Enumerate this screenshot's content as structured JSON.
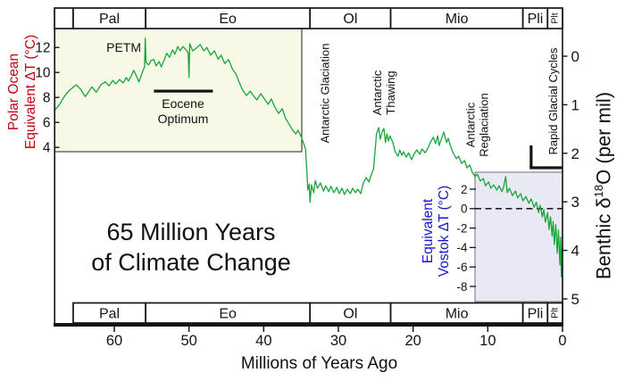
{
  "colors": {
    "curve": "#17A63A",
    "cream_panel": "#F8F8E7",
    "lavender_panel": "#E9E9F6",
    "red_label": "#C4000E",
    "blue_label": "#1717C9",
    "ink": "#141414"
  },
  "title": {
    "line1": "65 Million Years",
    "line2": "of Climate Change"
  },
  "x_axis": {
    "label": "Millions of Years Ago",
    "ticks": [
      60,
      50,
      40,
      30,
      20,
      10,
      0
    ]
  },
  "left_axis": {
    "label_line1": "Polar Ocean",
    "label_line2": "Equivalent ΔT (°C)",
    "ticks": [
      12,
      10,
      8,
      6,
      4
    ]
  },
  "right_axis": {
    "label_prefix": "Benthic δ",
    "label_sup": "18",
    "label_suffix": "O (per mil)",
    "ticks": [
      0,
      1,
      2,
      3,
      4,
      5
    ]
  },
  "vostok_axis": {
    "label_line1": "Equivalent",
    "label_line2": "Vostok ΔT (°C)",
    "ticks": [
      2,
      0,
      -2,
      -4,
      -6,
      -8
    ]
  },
  "epochs": {
    "top": [
      {
        "label": "",
        "start": 68,
        "end": 65.5
      },
      {
        "label": "Pal",
        "start": 65.5,
        "end": 55.8
      },
      {
        "label": "Eo",
        "start": 55.8,
        "end": 33.8
      },
      {
        "label": "Ol",
        "start": 33.8,
        "end": 23
      },
      {
        "label": "Mio",
        "start": 23,
        "end": 5.3
      },
      {
        "label": "Pli",
        "start": 5.3,
        "end": 2
      },
      {
        "label": "Plt",
        "start": 2,
        "end": 0,
        "rotated": true
      }
    ],
    "bottom": [
      {
        "label": "Pal",
        "start": 65.5,
        "end": 55.8
      },
      {
        "label": "Eo",
        "start": 55.8,
        "end": 33.8
      },
      {
        "label": "Ol",
        "start": 33.8,
        "end": 23
      },
      {
        "label": "Mio",
        "start": 23,
        "end": 5.3
      },
      {
        "label": "Pli",
        "start": 5.3,
        "end": 2
      },
      {
        "label": "Plt",
        "start": 2,
        "end": 0,
        "rotated": true
      }
    ]
  },
  "annotations": {
    "petm": "PETM",
    "eocene_optimum_line1": "Eocene",
    "eocene_optimum_line2": "Optimum",
    "antarctic_glaciation": "Antarctic Glaciation",
    "antarctic_thawing_line1": "Antarctic",
    "antarctic_thawing_line2": "Thawing",
    "antarctic_reglaciation_line1": "Antarctic",
    "antarctic_reglaciation_line2": "Reglaciation",
    "rapid_glacial_cycles": "Rapid Glacial Cycles"
  },
  "chart_data": {
    "type": "line",
    "title": "65 Million Years of Climate Change",
    "xlabel": "Millions of Years Ago",
    "xlim": [
      68,
      0
    ],
    "x_reversed": true,
    "ylabel_right": "Benthic δ18O (per mil)",
    "ylim_right": [
      0,
      5
    ],
    "y_right_inverted": true,
    "secondary_scales": [
      {
        "name": "Polar Ocean Equivalent ΔT (°C)",
        "ticks": [
          12,
          10,
          8,
          6,
          4
        ],
        "panel_age_range_ma": [
          68,
          34.9
        ]
      },
      {
        "name": "Equivalent Vostok ΔT (°C)",
        "ticks": [
          2,
          0,
          -2,
          -4,
          -6,
          -8
        ],
        "panel_age_range_ma": [
          11.7,
          0
        ],
        "dashed_reference_value": 0
      }
    ],
    "epoch_boundaries_ma": {
      "Pal": [
        65.5,
        55.8
      ],
      "Eo": [
        55.8,
        33.8
      ],
      "Ol": [
        33.8,
        23
      ],
      "Mio": [
        23,
        5.3
      ],
      "Pli": [
        5.3,
        2
      ],
      "Plt": [
        2,
        0
      ]
    },
    "events": [
      {
        "label": "PETM",
        "age_ma": 55.8
      },
      {
        "label": "Eocene Optimum",
        "age_range_ma": [
          54.7,
          46.8
        ]
      },
      {
        "label": "Antarctic Glaciation",
        "age_ma": 33.8
      },
      {
        "label": "Antarctic Thawing",
        "age_range_ma": [
          26,
          24
        ]
      },
      {
        "label": "Antarctic Reglaciation",
        "age_range_ma": [
          14,
          11
        ]
      },
      {
        "label": "Rapid Glacial Cycles",
        "age_range_ma": [
          4.2,
          0
        ]
      }
    ],
    "series": [
      {
        "name": "Benthic δ18O",
        "x_unit": "Ma (millions of years ago)",
        "y_unit": "per mil",
        "points": [
          [
            67.9,
            1.1
          ],
          [
            67.3,
            0.99
          ],
          [
            66.7,
            0.83
          ],
          [
            66.0,
            0.7
          ],
          [
            65.1,
            0.59
          ],
          [
            64.5,
            0.68
          ],
          [
            63.9,
            0.83
          ],
          [
            63.5,
            0.75
          ],
          [
            63.0,
            0.63
          ],
          [
            62.4,
            0.74
          ],
          [
            61.8,
            0.59
          ],
          [
            61.2,
            0.53
          ],
          [
            60.7,
            0.61
          ],
          [
            60.2,
            0.5
          ],
          [
            59.8,
            0.57
          ],
          [
            59.3,
            0.48
          ],
          [
            58.8,
            0.55
          ],
          [
            58.4,
            0.44
          ],
          [
            58.1,
            0.51
          ],
          [
            57.7,
            0.4
          ],
          [
            57.4,
            0.29
          ],
          [
            57.0,
            0.42
          ],
          [
            56.7,
            0.53
          ],
          [
            56.4,
            0.4
          ],
          [
            56.2,
            0.31
          ],
          [
            55.95,
            0.22
          ],
          [
            55.85,
            -0.37
          ],
          [
            55.75,
            0.13
          ],
          [
            55.4,
            0.18
          ],
          [
            55.1,
            0.09
          ],
          [
            54.7,
            0.07
          ],
          [
            54.4,
            0.2
          ],
          [
            54.0,
            0.11
          ],
          [
            53.7,
            0.22
          ],
          [
            53.3,
            0.07
          ],
          [
            53.0,
            -0.06
          ],
          [
            52.6,
            0.02
          ],
          [
            52.2,
            -0.13
          ],
          [
            51.9,
            -0.04
          ],
          [
            51.5,
            -0.2
          ],
          [
            51.2,
            -0.11
          ],
          [
            50.8,
            -0.2
          ],
          [
            50.4,
            -0.13
          ],
          [
            50.1,
            -0.07
          ],
          [
            50.0,
            0.44
          ],
          [
            49.9,
            -0.26
          ],
          [
            49.5,
            -0.11
          ],
          [
            49.0,
            -0.17
          ],
          [
            48.5,
            -0.24
          ],
          [
            48.0,
            -0.11
          ],
          [
            47.6,
            -0.18
          ],
          [
            47.1,
            -0.02
          ],
          [
            46.6,
            -0.11
          ],
          [
            46.1,
            0.06
          ],
          [
            45.7,
            -0.02
          ],
          [
            45.2,
            0.15
          ],
          [
            44.7,
            0.07
          ],
          [
            44.2,
            0.26
          ],
          [
            43.7,
            0.37
          ],
          [
            43.3,
            0.53
          ],
          [
            42.8,
            0.7
          ],
          [
            42.3,
            0.81
          ],
          [
            41.8,
            0.72
          ],
          [
            41.4,
            0.81
          ],
          [
            40.9,
            0.9
          ],
          [
            40.4,
            0.77
          ],
          [
            39.9,
            0.88
          ],
          [
            39.4,
            0.99
          ],
          [
            39.0,
            0.88
          ],
          [
            38.5,
            1.05
          ],
          [
            38.0,
            1.18
          ],
          [
            37.5,
            1.08
          ],
          [
            37.1,
            1.27
          ],
          [
            36.6,
            1.4
          ],
          [
            36.1,
            1.53
          ],
          [
            35.7,
            1.6
          ],
          [
            35.4,
            1.53
          ],
          [
            35.0,
            1.65
          ],
          [
            34.7,
            1.78
          ],
          [
            34.4,
            1.91
          ],
          [
            34.2,
            2.44
          ],
          [
            34.1,
            2.76
          ],
          [
            33.9,
            2.63
          ],
          [
            33.8,
            3.01
          ],
          [
            33.6,
            2.65
          ],
          [
            33.3,
            2.81
          ],
          [
            33.1,
            2.56
          ],
          [
            32.8,
            2.72
          ],
          [
            32.4,
            2.61
          ],
          [
            32.0,
            2.78
          ],
          [
            31.7,
            2.67
          ],
          [
            31.3,
            2.79
          ],
          [
            31.0,
            2.68
          ],
          [
            30.6,
            2.81
          ],
          [
            30.2,
            2.7
          ],
          [
            29.9,
            2.83
          ],
          [
            29.5,
            2.72
          ],
          [
            29.2,
            2.85
          ],
          [
            28.8,
            2.74
          ],
          [
            28.4,
            2.83
          ],
          [
            28.1,
            2.72
          ],
          [
            27.7,
            2.81
          ],
          [
            27.4,
            2.74
          ],
          [
            27.0,
            2.83
          ],
          [
            26.7,
            2.63
          ],
          [
            26.3,
            2.5
          ],
          [
            25.9,
            2.59
          ],
          [
            25.6,
            2.44
          ],
          [
            25.3,
            2.33
          ],
          [
            25.1,
            1.97
          ],
          [
            24.9,
            1.6
          ],
          [
            24.6,
            1.47
          ],
          [
            24.4,
            1.71
          ],
          [
            24.1,
            1.54
          ],
          [
            23.9,
            1.49
          ],
          [
            23.7,
            1.78
          ],
          [
            23.5,
            1.6
          ],
          [
            23.3,
            1.75
          ],
          [
            23.1,
            1.64
          ],
          [
            22.7,
            1.78
          ],
          [
            22.4,
            1.97
          ],
          [
            22.0,
            2.06
          ],
          [
            21.8,
            1.93
          ],
          [
            21.5,
            2.04
          ],
          [
            21.3,
            1.97
          ],
          [
            20.9,
            2.08
          ],
          [
            20.6,
            1.99
          ],
          [
            20.2,
            2.13
          ],
          [
            19.8,
            2.0
          ],
          [
            19.5,
            1.93
          ],
          [
            19.1,
            2.02
          ],
          [
            18.8,
            1.91
          ],
          [
            18.4,
            1.99
          ],
          [
            18.0,
            1.89
          ],
          [
            17.7,
            1.78
          ],
          [
            17.3,
            1.67
          ],
          [
            17.0,
            1.8
          ],
          [
            16.7,
            1.64
          ],
          [
            16.5,
            1.84
          ],
          [
            16.3,
            1.75
          ],
          [
            15.9,
            1.56
          ],
          [
            15.5,
            1.78
          ],
          [
            15.3,
            1.69
          ],
          [
            14.9,
            1.89
          ],
          [
            14.6,
            2.0
          ],
          [
            14.2,
            2.11
          ],
          [
            13.9,
            2.06
          ],
          [
            13.5,
            2.21
          ],
          [
            13.1,
            2.15
          ],
          [
            12.8,
            2.3
          ],
          [
            12.4,
            2.24
          ],
          [
            12.1,
            2.39
          ],
          [
            11.7,
            2.48
          ],
          [
            11.4,
            2.43
          ],
          [
            11.0,
            2.57
          ],
          [
            10.6,
            2.52
          ],
          [
            10.3,
            2.67
          ],
          [
            9.9,
            2.59
          ],
          [
            9.6,
            2.72
          ],
          [
            9.2,
            2.65
          ],
          [
            8.8,
            2.76
          ],
          [
            8.5,
            2.67
          ],
          [
            8.1,
            2.79
          ],
          [
            7.9,
            2.7
          ],
          [
            7.6,
            2.48
          ],
          [
            7.4,
            2.81
          ],
          [
            7.1,
            2.72
          ],
          [
            6.7,
            2.87
          ],
          [
            6.3,
            2.78
          ],
          [
            6.0,
            2.92
          ],
          [
            5.6,
            2.83
          ],
          [
            5.3,
            2.98
          ],
          [
            4.9,
            2.89
          ],
          [
            4.5,
            3.03
          ],
          [
            4.2,
            2.94
          ],
          [
            3.8,
            3.11
          ],
          [
            3.5,
            3.01
          ],
          [
            3.2,
            3.22
          ],
          [
            3.0,
            3.07
          ],
          [
            2.7,
            3.31
          ],
          [
            2.5,
            3.16
          ],
          [
            2.3,
            3.42
          ],
          [
            2.0,
            3.22
          ],
          [
            1.8,
            3.57
          ],
          [
            1.6,
            3.31
          ],
          [
            1.4,
            3.7
          ],
          [
            1.25,
            3.4
          ],
          [
            1.1,
            3.88
          ],
          [
            0.9,
            3.47
          ],
          [
            0.7,
            4.06
          ],
          [
            0.55,
            3.58
          ],
          [
            0.35,
            4.3
          ],
          [
            0.25,
            3.73
          ],
          [
            0.15,
            4.54
          ],
          [
            0.05,
            3.95
          ],
          [
            0.0,
            4.76
          ]
        ]
      }
    ]
  }
}
